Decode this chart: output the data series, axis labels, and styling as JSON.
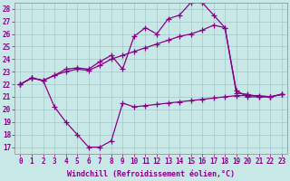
{
  "xlabel": "Windchill (Refroidissement éolien,°C)",
  "x": [
    0,
    1,
    2,
    3,
    4,
    5,
    6,
    7,
    8,
    9,
    10,
    11,
    12,
    13,
    14,
    15,
    16,
    17,
    18,
    19,
    20,
    21,
    22,
    23
  ],
  "line1": [
    22,
    22.5,
    22.3,
    22.7,
    23.2,
    23.3,
    23.2,
    23.8,
    24.3,
    23.2,
    25.8,
    26.5,
    26.0,
    27.2,
    27.5,
    28.5,
    28.5,
    27.5,
    26.5,
    21.3,
    21.2,
    21.0,
    21.0,
    21.2
  ],
  "line2": [
    22,
    22.5,
    22.3,
    22.7,
    23.0,
    23.2,
    23.1,
    23.5,
    24.0,
    24.3,
    24.6,
    24.9,
    25.2,
    25.5,
    25.8,
    26.0,
    26.3,
    26.7,
    26.5,
    21.5,
    21.0,
    21.0,
    21.0,
    21.2
  ],
  "line3": [
    22,
    22.5,
    22.3,
    20.2,
    19.0,
    18.0,
    17.0,
    17.0,
    17.5,
    20.5,
    20.2,
    20.3,
    20.4,
    20.5,
    20.6,
    20.7,
    20.8,
    20.9,
    21.0,
    21.1,
    21.1,
    21.1,
    21.0,
    21.2
  ],
  "color": "#880088",
  "bg_color": "#c8e8e8",
  "grid_color": "#a8cccc",
  "ylim_min": 16.5,
  "ylim_max": 28.5,
  "yticks": [
    17,
    18,
    19,
    20,
    21,
    22,
    23,
    24,
    25,
    26,
    27,
    28
  ],
  "xticks": [
    0,
    1,
    2,
    3,
    4,
    5,
    6,
    7,
    8,
    9,
    10,
    11,
    12,
    13,
    14,
    15,
    16,
    17,
    18,
    19,
    20,
    21,
    22,
    23
  ],
  "marker": "+",
  "linewidth": 0.9,
  "markersize": 4,
  "tick_fontsize": 5.5,
  "xlabel_fontsize": 6.0
}
